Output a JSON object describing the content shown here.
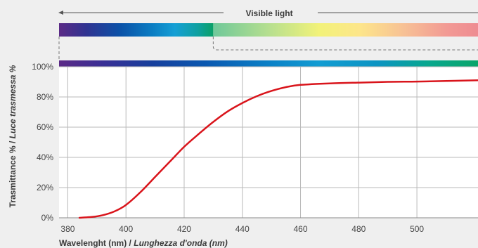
{
  "chart_data": {
    "type": "line",
    "visible_light_label": "Visible light",
    "xlabel_en": "Wavelenght (nm)",
    "xlabel_sep": "/",
    "xlabel_it": "Lunghezza d'onda (nm)",
    "ylabel_en": "Trasmittance %",
    "ylabel_sep": "/",
    "ylabel_it": "Luce trasmessa %",
    "xlim": [
      377,
      521
    ],
    "ylim": [
      0,
      100
    ],
    "x_ticks": [
      380,
      400,
      420,
      440,
      460,
      480,
      500
    ],
    "y_ticks": [
      "0%",
      "20%",
      "40%",
      "60%",
      "80%",
      "100%"
    ],
    "grid": true,
    "cutoff_nm": 430,
    "series": [
      {
        "color": "#d9141b",
        "x": [
          384,
          388,
          392,
          396,
          400,
          405,
          410,
          415,
          420,
          425,
          430,
          435,
          440,
          445,
          450,
          455,
          460,
          470,
          480,
          490,
          500,
          510,
          521
        ],
        "y": [
          0,
          0.5,
          1.7,
          4.2,
          8.5,
          17,
          27,
          37,
          47,
          55.5,
          63.5,
          70.5,
          76,
          80.5,
          84,
          86.5,
          88,
          89,
          89.5,
          90,
          90.2,
          90.6,
          91
        ]
      }
    ]
  }
}
